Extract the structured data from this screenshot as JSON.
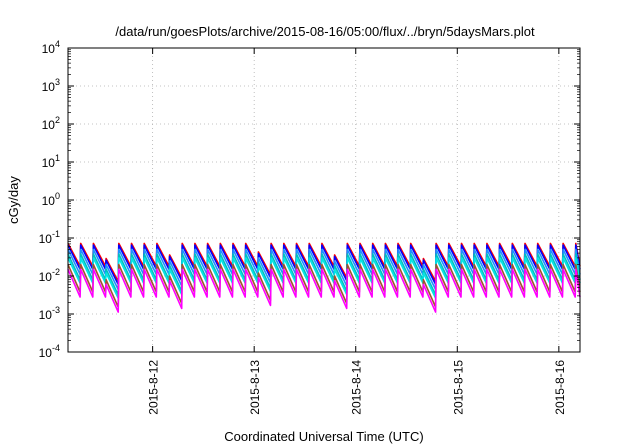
{
  "chart_data": {
    "type": "line",
    "title": "/data/run/goesPlots/archive/2015-08-16/05:00/flux/../bryn/5daysMars.plot",
    "xlabel": "Coordinated Universal Time (UTC)",
    "ylabel": "cGy/day",
    "x_range": [
      "2015-08-11T04:00",
      "2015-08-16T05:00"
    ],
    "x_tick_labels": [
      "2015-8-12",
      "2015-8-13",
      "2015-8-14",
      "2015-8-15",
      "2015-8-16"
    ],
    "x_tick_values": [
      "2015-08-12T00:00",
      "2015-08-13T00:00",
      "2015-08-14T00:00",
      "2015-08-15T00:00",
      "2015-08-16T00:00"
    ],
    "y_scale": "log",
    "ylim": [
      0.0001,
      10000
    ],
    "y_tick_values": [
      0.0001,
      0.001,
      0.01,
      0.1,
      1,
      10,
      100,
      1000,
      10000
    ],
    "y_tick_labels": [
      {
        "base": "10",
        "exp": "-4"
      },
      {
        "base": "10",
        "exp": "-3"
      },
      {
        "base": "10",
        "exp": "-2"
      },
      {
        "base": "10",
        "exp": "-1"
      },
      {
        "base": "10",
        "exp": "0"
      },
      {
        "base": "10",
        "exp": "1"
      },
      {
        "base": "10",
        "exp": "2"
      },
      {
        "base": "10",
        "exp": "3"
      },
      {
        "base": "10",
        "exp": "4"
      }
    ],
    "grid": true,
    "sawtooth_period_hours": 3,
    "dips": [
      {
        "time": "2015-08-11T13:00",
        "depth": 0.4
      },
      {
        "time": "2015-08-12T04:00",
        "depth": 0.5
      },
      {
        "time": "2015-08-13T00:30",
        "depth": 0.6
      },
      {
        "time": "2015-08-13T18:00",
        "depth": 0.5
      },
      {
        "time": "2015-08-14T14:00",
        "depth": 0.4
      }
    ],
    "series": [
      {
        "color": "#ff0000",
        "peak": 0.072,
        "trough": 0.018
      },
      {
        "color": "#0000ff",
        "peak": 0.065,
        "trough": 0.015
      },
      {
        "color": "#1e90ff",
        "peak": 0.05,
        "trough": 0.011
      },
      {
        "color": "#00bfbf",
        "peak": 0.038,
        "trough": 0.008
      },
      {
        "color": "#00e5e5",
        "peak": 0.03,
        "trough": 0.0065
      },
      {
        "color": "#a0522d",
        "peak": 0.02,
        "trough": 0.0038
      },
      {
        "color": "#ff00ff",
        "peak": 0.015,
        "trough": 0.0028
      }
    ]
  }
}
